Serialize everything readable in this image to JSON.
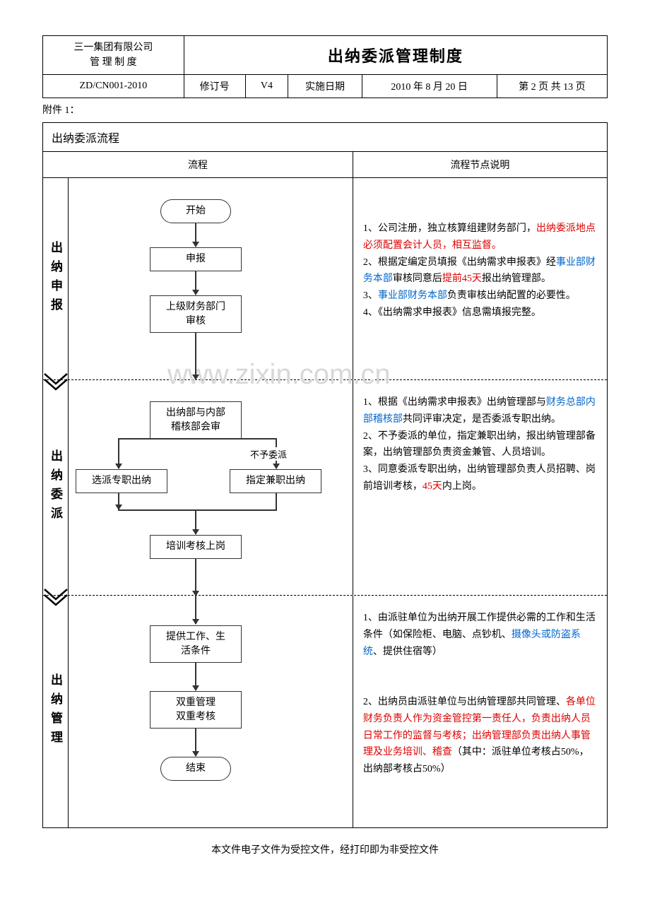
{
  "header": {
    "company_line1": "三一集团有限公司",
    "company_line2": "管 理 制 度",
    "doc_title": "出纳委派管理制度",
    "doc_code": "ZD/CN001-2010",
    "rev_label": "修订号",
    "rev_value": "V4",
    "date_label": "实施日期",
    "date_value": "2010 年 8 月 20 日",
    "page_info": "第 2 页 共 13 页"
  },
  "attachment_label": "附件 1：",
  "flow": {
    "title": "出纳委派流程",
    "col_flow": "流程",
    "col_desc": "流程节点说明"
  },
  "watermark": "www.zixin.com.cn",
  "sections": [
    {
      "label": "出纳申报",
      "nodes": {
        "start": "开始",
        "apply": "申报",
        "review": "上级财务部门\n审核"
      },
      "desc": [
        {
          "t": "1、公司注册，独立核算组建财务部门，"
        },
        {
          "t": "出纳委派地点必须配置会计人员，相互监督。",
          "c": "red"
        },
        {
          "t": "\n2、根据定编定员填报《出纳需求申报表》经"
        },
        {
          "t": "事业部财务本部",
          "c": "blue"
        },
        {
          "t": "审核同意后"
        },
        {
          "t": "提前45天",
          "c": "red"
        },
        {
          "t": "报出纳管理部。\n3、"
        },
        {
          "t": "事业部财务本部",
          "c": "blue"
        },
        {
          "t": "负责审核出纳配置的必要性。\n4、《出纳需求申报表》信息需填报完整。"
        }
      ]
    },
    {
      "label": "出纳委派",
      "nodes": {
        "joint": "出纳部与内部\n稽核部会审",
        "select": "选派专职出纳",
        "assign": "指定兼职出纳",
        "train": "培训考核上岗",
        "reject_label": "不予委派"
      },
      "desc": [
        {
          "t": "1、根据《出纳需求申报表》出纳管理部与"
        },
        {
          "t": "财务总部内部稽核部",
          "c": "blue"
        },
        {
          "t": "共同评审决定，是否委派专职出纳。\n2、不予委派的单位，指定兼职出纳，报出纳管理部备案，出纳管理部负责资金兼管、人员培训。\n3、同意委派专职出纳，出纳管理部负责人员招聘、岗前培训考核，"
        },
        {
          "t": "45天",
          "c": "red"
        },
        {
          "t": "内上岗。"
        }
      ]
    },
    {
      "label": "出纳管理",
      "nodes": {
        "provide": "提供工作、生\n活条件",
        "dual": "双重管理\n双重考核",
        "end": "结束"
      },
      "desc": [
        {
          "t": "1、由派驻单位为出纳开展工作提供必需的工作和生活条件（如保险柜、电脑、点钞机、"
        },
        {
          "t": "摄像头或防盗系统",
          "c": "blue"
        },
        {
          "t": "、提供住宿等）\n\n\n2、出纳员由派驻单位与出纳管理部共同管理、"
        },
        {
          "t": "各单位财务负责人作为资金管控第一责任人，负责出纳人员日常工作的监督与考核；出纳管理部负责出纳人事管理及业务培训、稽查",
          "c": "red"
        },
        {
          "t": "（其中：派驻单位考核占50%，出纳部考核占50%）"
        }
      ]
    }
  ],
  "footer": "本文件电子文件为受控文件，经打印即为非受控文件"
}
